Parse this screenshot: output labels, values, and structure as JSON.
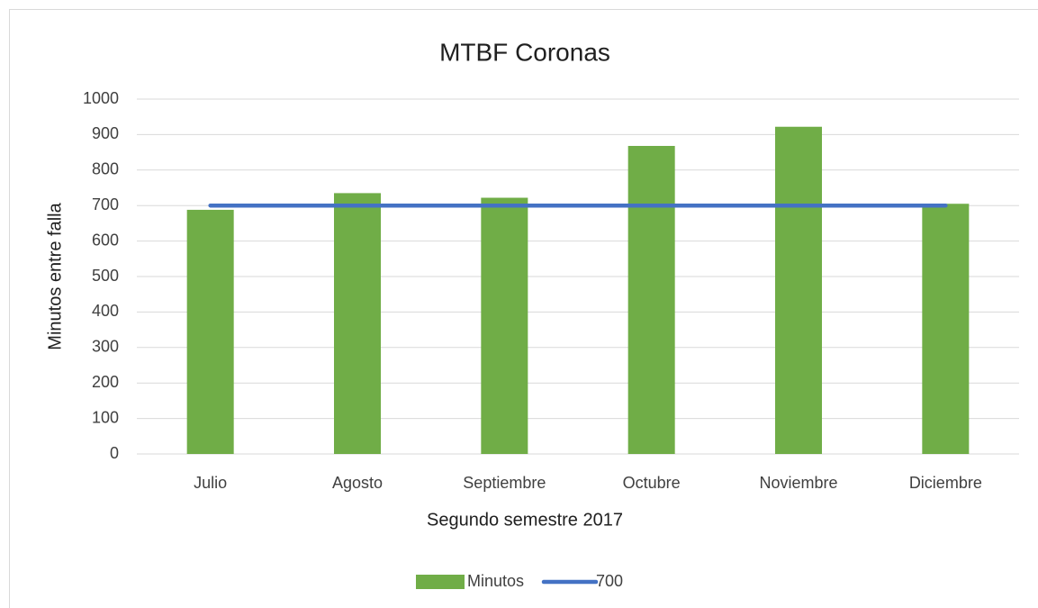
{
  "chart_data": {
    "type": "bar",
    "title": "MTBF Coronas",
    "x_label": "Segundo semestre 2017",
    "y_label": "Minutos entre falla",
    "categories": [
      "Julio",
      "Agosto",
      "Septiembre",
      "Octubre",
      "Noviembre",
      "Diciembre"
    ],
    "series": [
      {
        "name": "Minutos",
        "type": "bar",
        "color": "#70ad47",
        "values": [
          688,
          735,
          722,
          868,
          922,
          705
        ]
      },
      {
        "name": "700",
        "type": "line",
        "color": "#4472c4",
        "values": [
          700,
          700,
          700,
          700,
          700,
          700
        ]
      }
    ],
    "ylim": [
      0,
      1000
    ],
    "yticks": [
      0,
      100,
      200,
      300,
      400,
      500,
      600,
      700,
      800,
      900,
      1000
    ],
    "grid": true,
    "legend": "bottom"
  }
}
